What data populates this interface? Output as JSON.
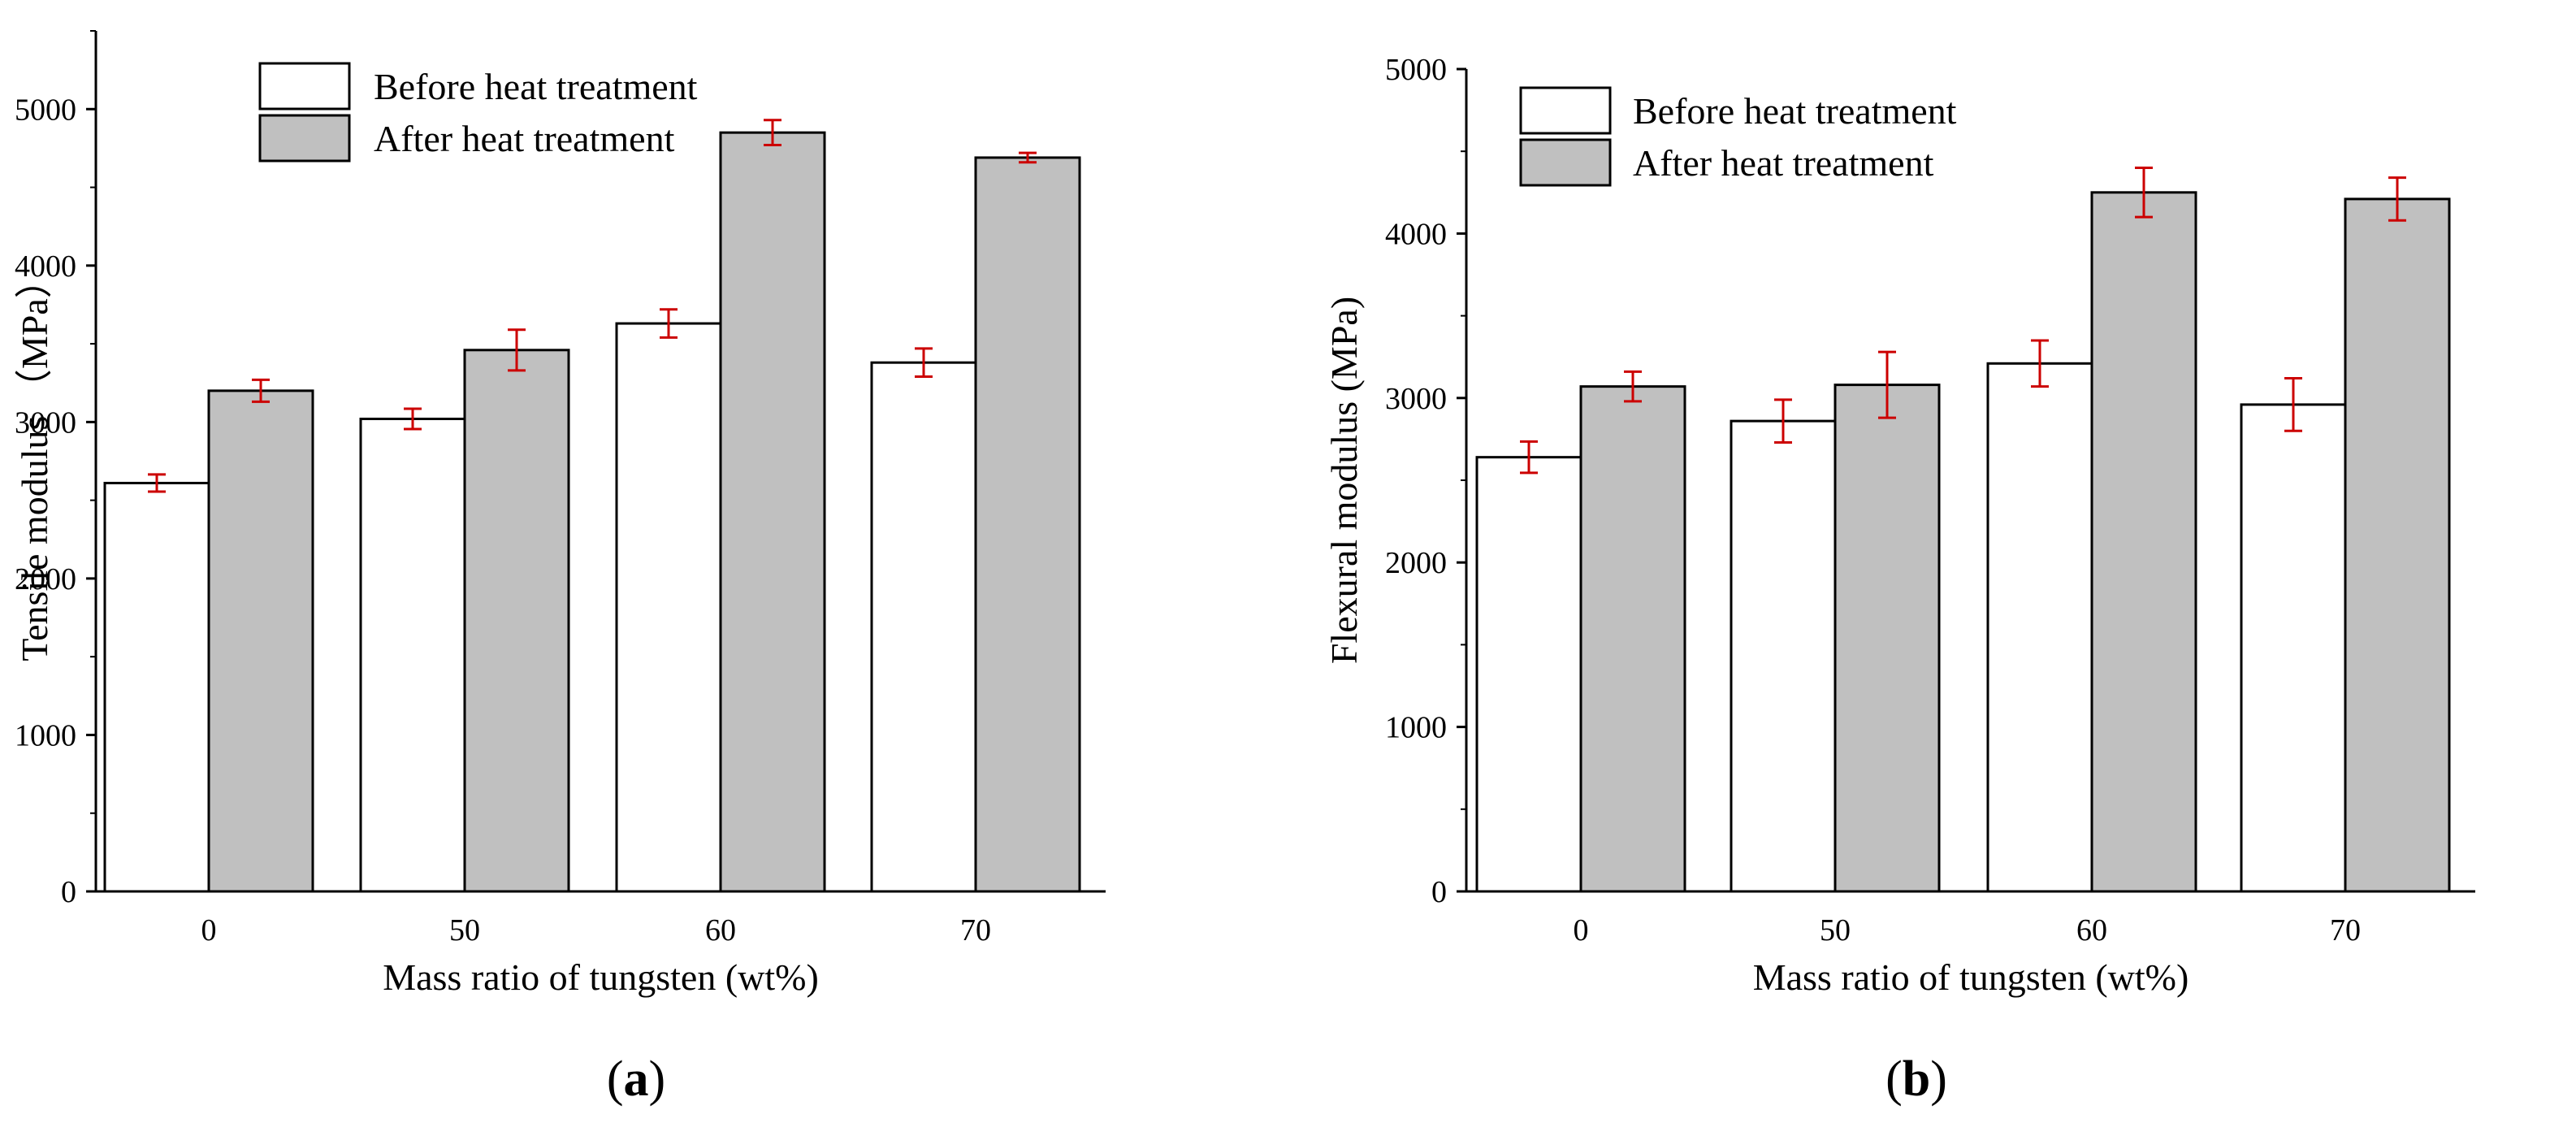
{
  "colors": {
    "before": "#ffffff",
    "after": "#c0c0c0",
    "edge": "#000000",
    "error": "#cc0000"
  },
  "chart_data": [
    {
      "type": "bar",
      "panel_label": "a",
      "xlabel": "Mass ratio of tungsten (wt%)",
      "ylabel": "Tensile modulus （MPa）",
      "categories": [
        "0",
        "50",
        "60",
        "70"
      ],
      "ylim": [
        0,
        5500
      ],
      "yticks": [
        "0",
        "1000",
        "2000",
        "3000",
        "4000",
        "5000"
      ],
      "legend_position": "top-left",
      "series": [
        {
          "name": "Before heat treatment",
          "values": [
            2610,
            3020,
            3630,
            3380
          ],
          "errors": [
            55,
            65,
            90,
            90
          ]
        },
        {
          "name": "After heat treatment",
          "values": [
            3200,
            3460,
            4850,
            4690
          ],
          "errors": [
            70,
            130,
            80,
            30
          ]
        }
      ]
    },
    {
      "type": "bar",
      "panel_label": "b",
      "xlabel": "Mass ratio of tungsten (wt%)",
      "ylabel": "Flexural modulus (MPa)",
      "categories": [
        "0",
        "50",
        "60",
        "70"
      ],
      "ylim": [
        0,
        5000
      ],
      "yticks": [
        "0",
        "1000",
        "2000",
        "3000",
        "4000",
        "5000"
      ],
      "legend_position": "top-left",
      "series": [
        {
          "name": "Before heat treatment",
          "values": [
            2640,
            2860,
            3210,
            2960
          ],
          "errors": [
            95,
            130,
            140,
            160
          ]
        },
        {
          "name": "After heat treatment",
          "values": [
            3070,
            3080,
            4250,
            4210
          ],
          "errors": [
            90,
            200,
            150,
            130
          ]
        }
      ]
    }
  ]
}
